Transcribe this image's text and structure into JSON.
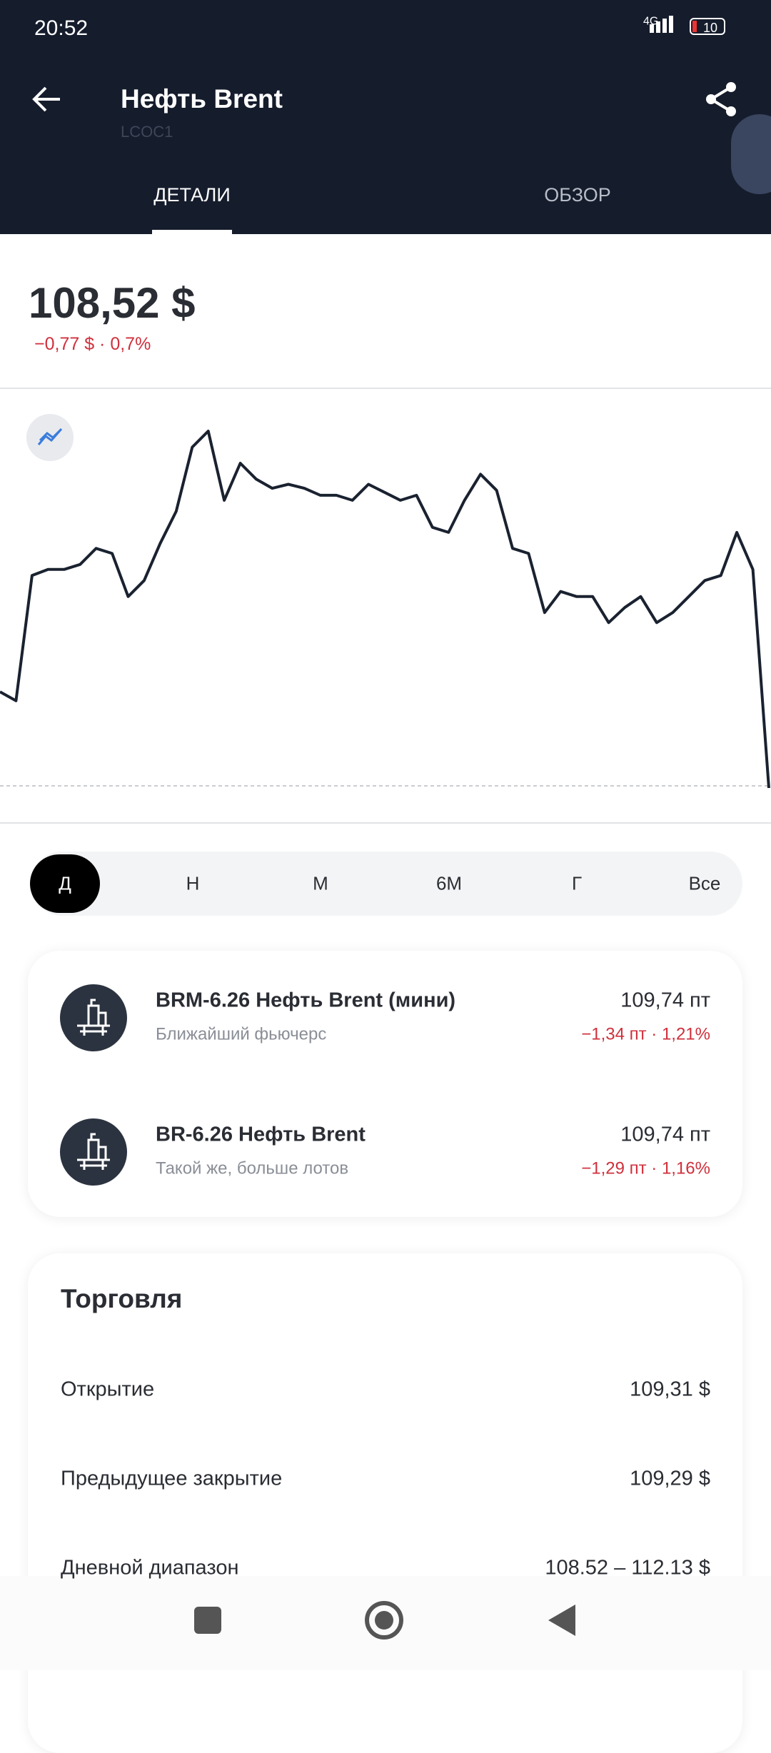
{
  "status_bar": {
    "time": "20:52",
    "network": "4G",
    "battery": "10"
  },
  "header": {
    "title": "Нефть Brent",
    "ticker": "LCOC1",
    "tabs": [
      "ДЕТАЛИ",
      "ОБЗОР"
    ]
  },
  "quote": {
    "price": "108,52 $",
    "change": "−0,77 $ · 0,7%"
  },
  "chart_data": {
    "type": "line",
    "color": "#1a2230",
    "ylim": [
      108.52,
      112.13
    ],
    "values": [
      109.48,
      109.39,
      110.64,
      110.7,
      110.7,
      110.75,
      110.91,
      110.86,
      110.43,
      110.59,
      110.96,
      111.28,
      111.92,
      112.08,
      111.39,
      111.76,
      111.6,
      111.51,
      111.55,
      111.51,
      111.44,
      111.44,
      111.39,
      111.55,
      111.47,
      111.39,
      111.44,
      111.12,
      111.07,
      111.39,
      111.65,
      111.49,
      110.91,
      110.86,
      110.27,
      110.48,
      110.43,
      110.43,
      110.17,
      110.32,
      110.43,
      110.17,
      110.27,
      110.43,
      110.59,
      110.64,
      111.07,
      110.7,
      108.52
    ]
  },
  "periods": [
    "Д",
    "Н",
    "М",
    "6М",
    "Г",
    "Все"
  ],
  "futures": [
    {
      "title": "BRM-6.26 Нефть Brent (мини)",
      "subtitle": "Ближайший фьючерс",
      "price": "109,74 пт",
      "change": "−1,34 пт · 1,21%"
    },
    {
      "title": "BR-6.26 Нефть Brent",
      "subtitle": "Такой же, больше лотов",
      "price": "109,74 пт",
      "change": "−1,29 пт · 1,16%"
    }
  ],
  "trading": {
    "title": "Торговля",
    "rows": [
      [
        "Открытие",
        "109,31 $"
      ],
      [
        "Предыдущее закрытие",
        "109,29 $"
      ],
      [
        "Дневной диапазон",
        "108.52 – 112.13 $"
      ]
    ]
  }
}
